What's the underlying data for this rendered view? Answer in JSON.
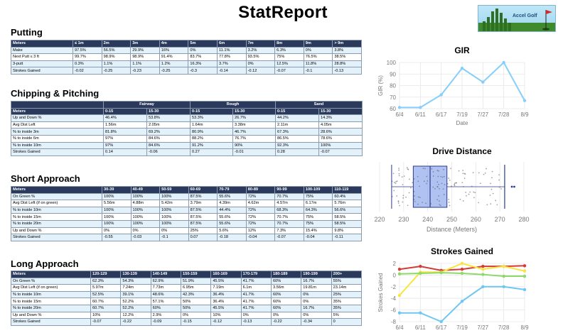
{
  "brand": "StatReport",
  "logo_text": "Accel Golf",
  "sections": {
    "putting": "Putting",
    "chipping": "Chipping & Pitching",
    "short": "Short Approach",
    "long": "Long Approach"
  },
  "putting": {
    "headers": [
      "Meters",
      "≤ 1m",
      "2m",
      "3m",
      "4m",
      "5m",
      "6m",
      "7m",
      "8m",
      "9m",
      "> 9m"
    ],
    "rows": [
      [
        "Make",
        "97.5%",
        "56.5%",
        "29.9%",
        "16%",
        "0%",
        "11.1%",
        "3.2%",
        "6.3%",
        "0%",
        "3.8%"
      ],
      [
        "Next Putt ≤ 3 ft",
        "99.7%",
        "98.9%",
        "98.9%",
        "91.4%",
        "83.7%",
        "77.8%",
        "93.5%",
        "75%",
        "76.5%",
        "38.5%"
      ],
      [
        "3-putt",
        "0.3%",
        "1.1%",
        "1.1%",
        "1.2%",
        "16.3%",
        "3.7%",
        "0%",
        "12.5%",
        "11.8%",
        "28.8%"
      ],
      [
        "Strokes Gained",
        "-0.02",
        "-0.25",
        "-0.23",
        "-0.25",
        "-0.3",
        "-0.14",
        "-0.12",
        "-0.07",
        "-0.1",
        "-0.13"
      ]
    ]
  },
  "chipping": {
    "group_headers": [
      "",
      "Fairway",
      "Rough",
      "Sand"
    ],
    "headers": [
      "Meters",
      "0-15",
      "15-30",
      "0-15",
      "15-30",
      "0-15",
      "15-30"
    ],
    "rows": [
      [
        "Up and Down %",
        "46.4%",
        "53.8%",
        "53.3%",
        "26.7%",
        "44.2%",
        "14.3%"
      ],
      [
        "Avg Dist Left",
        "1.56m",
        "2.05m",
        "1.64m",
        "3.38m",
        "2.11m",
        "4.05m"
      ],
      [
        "% to inside 3m",
        "81.8%",
        "69.2%",
        "80.9%",
        "46.7%",
        "67.3%",
        "28.6%"
      ],
      [
        "% to inside 6m",
        "97%",
        "84.6%",
        "88.2%",
        "76.7%",
        "86.5%",
        "78.6%"
      ],
      [
        "% to inside 10m",
        "97%",
        "84.6%",
        "91.2%",
        "90%",
        "92.3%",
        "100%"
      ],
      [
        "Strokes Gained",
        "0.14",
        "-0.06",
        "0.27",
        "-0.01",
        "0.28",
        "-0.07"
      ]
    ]
  },
  "short": {
    "headers": [
      "Meters",
      "30-39",
      "40-49",
      "50-59",
      "60-69",
      "70-79",
      "80-89",
      "90-99",
      "100-109",
      "110-119"
    ],
    "rows": [
      [
        "On Green %",
        "100%",
        "100%",
        "100%",
        "87.5%",
        "55.6%",
        "72%",
        "70.7%",
        "75%",
        "60.4%"
      ],
      [
        "Avg Dist Left (if on green)",
        "5.56m",
        "4.88m",
        "5.42m",
        "3.79m",
        "4.39m",
        "4.62m",
        "4.57m",
        "6.17m",
        "5.76m"
      ],
      [
        "% to inside 10m",
        "100%",
        "100%",
        "100%",
        "87.5%",
        "44.4%",
        "72%",
        "68.3%",
        "64.3%",
        "56.6%"
      ],
      [
        "% to inside 15m",
        "100%",
        "100%",
        "100%",
        "87.5%",
        "55.6%",
        "72%",
        "70.7%",
        "75%",
        "58.5%"
      ],
      [
        "% to inside 20m",
        "100%",
        "100%",
        "100%",
        "87.5%",
        "55.6%",
        "72%",
        "70.7%",
        "75%",
        "58.5%"
      ],
      [
        "Up and Down %",
        "0%",
        "0%",
        "0%",
        "25%",
        "5.6%",
        "12%",
        "7.3%",
        "15.4%",
        "9.8%"
      ],
      [
        "Strokes Gained",
        "-0.55",
        "-0.03",
        "-0.1",
        "0.07",
        "-0.18",
        "-0.04",
        "-0.07",
        "-0.04",
        "-0.11"
      ]
    ]
  },
  "long": {
    "headers": [
      "Meters",
      "120-129",
      "130-139",
      "140-149",
      "150-159",
      "160-169",
      "170-179",
      "180-189",
      "190-199",
      "200+"
    ],
    "rows": [
      [
        "On Green %",
        "62.3%",
        "54.3%",
        "62.9%",
        "51.9%",
        "45.5%",
        "41.7%",
        "60%",
        "16.7%",
        "55%"
      ],
      [
        "Avg Dist Left (if on green)",
        "5.97m",
        "7.24m",
        "7.73m",
        "6.95m",
        "7.19m",
        "6.1m",
        "3.56m",
        "19.81m",
        "23.14m"
      ],
      [
        "% to inside 10m",
        "52.5%",
        "39.1%",
        "48.6%",
        "42.3%",
        "36.4%",
        "41.7%",
        "60%",
        "0%",
        "25%"
      ],
      [
        "% to inside 15m",
        "60.7%",
        "52.2%",
        "57.1%",
        "50%",
        "36.4%",
        "41.7%",
        "60%",
        "0%",
        "35%"
      ],
      [
        "% to inside 20m",
        "60.7%",
        "52.2%",
        "60%",
        "50%",
        "45.5%",
        "41.7%",
        "60%",
        "16.7%",
        "35%"
      ],
      [
        "Up and Down %",
        "10%",
        "12.2%",
        "2.9%",
        "0%",
        "10%",
        "0%",
        "0%",
        "0%",
        "5%"
      ],
      [
        "Strokes Gained",
        "-0.07",
        "-0.22",
        "-0.09",
        "-0.15",
        "-0.12",
        "-0.13",
        "-0.22",
        "-0.34",
        "0"
      ]
    ]
  },
  "chart_data": [
    {
      "type": "line",
      "title": "GIR",
      "xlabel": "Date",
      "ylabel": "GIR (%)",
      "categories": [
        "6/4",
        "6/11",
        "6/17",
        "7/19",
        "7/27",
        "7/28",
        "8/9"
      ],
      "series": [
        {
          "values": [
            61,
            61,
            72,
            95,
            83,
            100,
            67
          ],
          "color": "#87cefa"
        }
      ],
      "ylim": [
        60,
        100
      ],
      "yticks": [
        60,
        70,
        80,
        90,
        100
      ],
      "grid": true
    },
    {
      "type": "box",
      "title": "Drive Distance",
      "xlabel": "Distance (Meters)",
      "xlim": [
        220,
        280
      ],
      "xticks": [
        220,
        230,
        240,
        250,
        260,
        270,
        280
      ],
      "box": {
        "min": 225,
        "q1": 234,
        "median": 241,
        "q3": 248,
        "max": 272
      },
      "outliers": [
        275,
        276
      ],
      "color": "#6f8fe8",
      "grid": true
    },
    {
      "type": "line",
      "title": "Strokes Gained",
      "xlabel": "Date",
      "ylabel": "Strokes Gained",
      "categories": [
        "6/4",
        "6/11",
        "6/17",
        "7/19",
        "7/27",
        "7/28",
        "8/9"
      ],
      "series": [
        {
          "values": [
            1.0,
            1.5,
            0.8,
            1.0,
            1.5,
            1.5,
            1.6
          ],
          "color": "#d63a34"
        },
        {
          "values": [
            -3.5,
            0.5,
            0.5,
            2.0,
            1.0,
            1.5,
            0.7
          ],
          "color": "#f7e640"
        },
        {
          "values": [
            0.2,
            0.3,
            0.4,
            0.3,
            0.1,
            -0.2,
            -0.2
          ],
          "color": "#8fd96a"
        },
        {
          "values": [
            -6.5,
            -6.5,
            -8.0,
            -4.5,
            -2.0,
            -2.0,
            -2.5
          ],
          "color": "#6ec7f2"
        }
      ],
      "ylim": [
        -8,
        2
      ],
      "yticks": [
        2,
        0,
        -2,
        -4,
        -6,
        -8
      ],
      "grid": true
    }
  ]
}
